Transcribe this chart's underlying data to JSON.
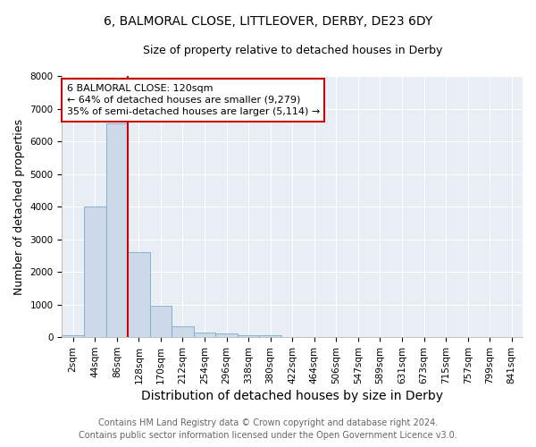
{
  "title_line1": "6, BALMORAL CLOSE, LITTLEOVER, DERBY, DE23 6DY",
  "title_line2": "Size of property relative to detached houses in Derby",
  "xlabel": "Distribution of detached houses by size in Derby",
  "ylabel": "Number of detached properties",
  "bar_labels": [
    "2sqm",
    "44sqm",
    "86sqm",
    "128sqm",
    "170sqm",
    "212sqm",
    "254sqm",
    "296sqm",
    "338sqm",
    "380sqm",
    "422sqm",
    "464sqm",
    "506sqm",
    "547sqm",
    "589sqm",
    "631sqm",
    "673sqm",
    "715sqm",
    "757sqm",
    "799sqm",
    "841sqm"
  ],
  "bar_values": [
    70,
    4000,
    6550,
    2620,
    960,
    330,
    130,
    120,
    65,
    55,
    0,
    0,
    0,
    0,
    0,
    0,
    0,
    0,
    0,
    0,
    0
  ],
  "bar_color": "#ccd9e8",
  "bar_edge_color": "#7aaac8",
  "ylim": [
    0,
    8000
  ],
  "yticks": [
    0,
    1000,
    2000,
    3000,
    4000,
    5000,
    6000,
    7000,
    8000
  ],
  "red_line_x": 2.5,
  "annotation_line1": "6 BALMORAL CLOSE: 120sqm",
  "annotation_line2": "← 64% of detached houses are smaller (9,279)",
  "annotation_line3": "35% of semi-detached houses are larger (5,114) →",
  "annotation_box_color": "#cc0000",
  "footer_line1": "Contains HM Land Registry data © Crown copyright and database right 2024.",
  "footer_line2": "Contains public sector information licensed under the Open Government Licence v3.0.",
  "bg_color": "#e8eef4",
  "grid_color": "#ffffff",
  "title1_fontsize": 10,
  "title2_fontsize": 9,
  "xlabel_fontsize": 10,
  "ylabel_fontsize": 9,
  "tick_fontsize": 7.5,
  "footer_fontsize": 7,
  "annot_fontsize": 8
}
